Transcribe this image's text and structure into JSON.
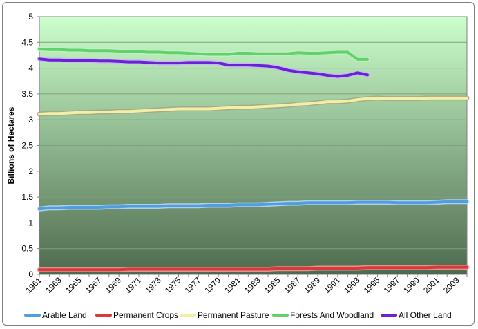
{
  "chart_data": {
    "type": "line",
    "title": "",
    "xlabel": "",
    "ylabel": "Billions of Hectares",
    "ylim": [
      0,
      5
    ],
    "yticks": [
      "0",
      "0.5",
      "1",
      "1.5",
      "2",
      "2.5",
      "3",
      "3.5",
      "4",
      "4.5",
      "5"
    ],
    "xlim": [
      1961,
      2004
    ],
    "xtick_labels": [
      "1961",
      "1963",
      "1965",
      "1967",
      "1969",
      "1971",
      "1973",
      "1975",
      "1977",
      "1979",
      "1981",
      "1983",
      "1985",
      "1987",
      "1989",
      "1991",
      "1993",
      "1995",
      "1997",
      "1999",
      "2001",
      "2003"
    ],
    "grid": "horizontal",
    "legend_position": "bottom",
    "background": {
      "top": "#ccffcc",
      "bottom": "#4e6a4e"
    },
    "series": [
      {
        "name": "Arable Land",
        "color": "#4f9fe0",
        "glow": "#bcdcff",
        "x": [
          1961,
          1962,
          1963,
          1964,
          1965,
          1966,
          1967,
          1968,
          1969,
          1970,
          1971,
          1972,
          1973,
          1974,
          1975,
          1976,
          1977,
          1978,
          1979,
          1980,
          1981,
          1982,
          1983,
          1984,
          1985,
          1986,
          1987,
          1988,
          1989,
          1990,
          1991,
          1992,
          1993,
          1994,
          1995,
          1996,
          1997,
          1998,
          1999,
          2000,
          2001,
          2002,
          2003,
          2004
        ],
        "values": [
          1.27,
          1.29,
          1.29,
          1.3,
          1.3,
          1.3,
          1.3,
          1.31,
          1.31,
          1.32,
          1.32,
          1.32,
          1.32,
          1.33,
          1.33,
          1.33,
          1.33,
          1.34,
          1.34,
          1.34,
          1.35,
          1.35,
          1.35,
          1.36,
          1.37,
          1.38,
          1.38,
          1.39,
          1.39,
          1.39,
          1.39,
          1.39,
          1.4,
          1.4,
          1.4,
          1.4,
          1.39,
          1.39,
          1.39,
          1.39,
          1.4,
          1.41,
          1.41,
          1.41
        ]
      },
      {
        "name": "Permanent Crops",
        "color": "#d63a3a",
        "glow": "#ff9a9a",
        "x": [
          1961,
          1962,
          1963,
          1964,
          1965,
          1966,
          1967,
          1968,
          1969,
          1970,
          1971,
          1972,
          1973,
          1974,
          1975,
          1976,
          1977,
          1978,
          1979,
          1980,
          1981,
          1982,
          1983,
          1984,
          1985,
          1986,
          1987,
          1988,
          1989,
          1990,
          1991,
          1992,
          1993,
          1994,
          1995,
          1996,
          1997,
          1998,
          1999,
          2000,
          2001,
          2002,
          2003,
          2004
        ],
        "values": [
          0.09,
          0.09,
          0.09,
          0.09,
          0.09,
          0.09,
          0.09,
          0.09,
          0.09,
          0.1,
          0.1,
          0.1,
          0.1,
          0.1,
          0.1,
          0.1,
          0.1,
          0.1,
          0.1,
          0.1,
          0.1,
          0.1,
          0.1,
          0.1,
          0.11,
          0.11,
          0.11,
          0.11,
          0.12,
          0.12,
          0.12,
          0.12,
          0.12,
          0.13,
          0.13,
          0.13,
          0.13,
          0.13,
          0.13,
          0.13,
          0.14,
          0.14,
          0.14,
          0.14
        ]
      },
      {
        "name": "Permanent Pasture",
        "color": "#f3f0a6",
        "glow": "#a6a38a",
        "x": [
          1961,
          1962,
          1963,
          1964,
          1965,
          1966,
          1967,
          1968,
          1969,
          1970,
          1971,
          1972,
          1973,
          1974,
          1975,
          1976,
          1977,
          1978,
          1979,
          1980,
          1981,
          1982,
          1983,
          1984,
          1985,
          1986,
          1987,
          1988,
          1989,
          1990,
          1991,
          1992,
          1993,
          1994,
          1995,
          1996,
          1997,
          1998,
          1999,
          2000,
          2001,
          2002,
          2003,
          2004
        ],
        "values": [
          3.11,
          3.12,
          3.12,
          3.13,
          3.14,
          3.14,
          3.15,
          3.15,
          3.16,
          3.16,
          3.17,
          3.18,
          3.19,
          3.2,
          3.21,
          3.21,
          3.21,
          3.21,
          3.22,
          3.23,
          3.24,
          3.24,
          3.25,
          3.26,
          3.27,
          3.28,
          3.3,
          3.31,
          3.33,
          3.35,
          3.35,
          3.36,
          3.39,
          3.41,
          3.42,
          3.41,
          3.41,
          3.41,
          3.41,
          3.42,
          3.42,
          3.42,
          3.42,
          3.42
        ]
      },
      {
        "name": "Forests And Woodland",
        "color": "#5fd36a",
        "glow": "#c2f0c6",
        "x": [
          1961,
          1962,
          1963,
          1964,
          1965,
          1966,
          1967,
          1968,
          1969,
          1970,
          1971,
          1972,
          1973,
          1974,
          1975,
          1976,
          1977,
          1978,
          1979,
          1980,
          1981,
          1982,
          1983,
          1984,
          1985,
          1986,
          1987,
          1988,
          1989,
          1990,
          1991,
          1992,
          1993,
          1994
        ],
        "values": [
          4.37,
          4.36,
          4.36,
          4.35,
          4.35,
          4.34,
          4.34,
          4.34,
          4.33,
          4.32,
          4.32,
          4.31,
          4.31,
          4.3,
          4.3,
          4.29,
          4.28,
          4.27,
          4.27,
          4.27,
          4.29,
          4.29,
          4.28,
          4.28,
          4.28,
          4.28,
          4.3,
          4.29,
          4.29,
          4.3,
          4.31,
          4.31,
          4.17,
          4.17
        ]
      },
      {
        "name": "All Other Land",
        "color": "#6a22d6",
        "glow": "#c9b5f2",
        "x": [
          1961,
          1962,
          1963,
          1964,
          1965,
          1966,
          1967,
          1968,
          1969,
          1970,
          1971,
          1972,
          1973,
          1974,
          1975,
          1976,
          1977,
          1978,
          1979,
          1980,
          1981,
          1982,
          1983,
          1984,
          1985,
          1986,
          1987,
          1988,
          1989,
          1990,
          1991,
          1992,
          1993,
          1994
        ],
        "values": [
          4.18,
          4.16,
          4.16,
          4.15,
          4.15,
          4.15,
          4.14,
          4.14,
          4.13,
          4.12,
          4.12,
          4.11,
          4.1,
          4.1,
          4.1,
          4.11,
          4.11,
          4.11,
          4.1,
          4.06,
          4.06,
          4.06,
          4.05,
          4.04,
          4.01,
          3.96,
          3.93,
          3.91,
          3.89,
          3.86,
          3.84,
          3.86,
          3.91,
          3.87
        ]
      }
    ]
  }
}
